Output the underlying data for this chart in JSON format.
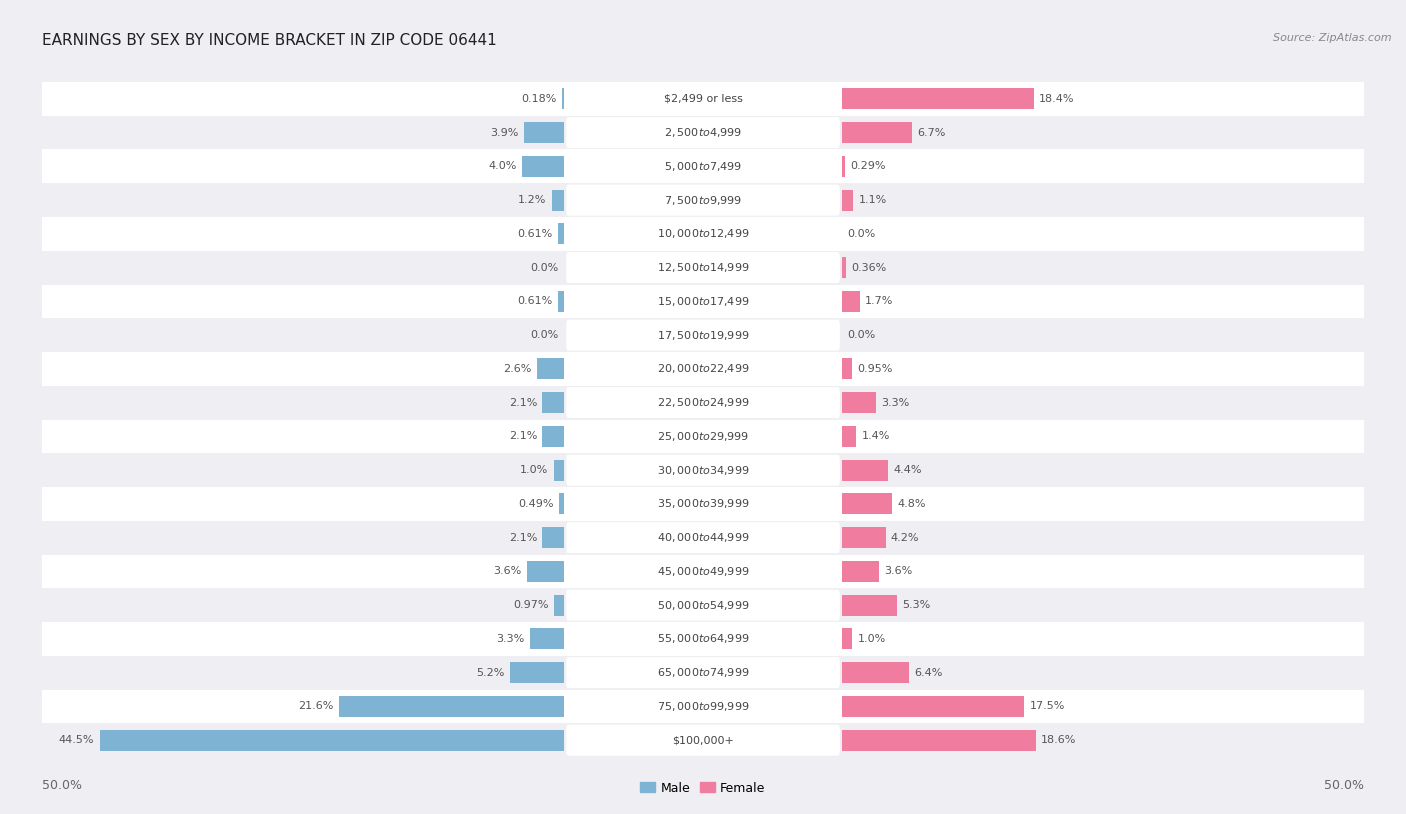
{
  "title": "EARNINGS BY SEX BY INCOME BRACKET IN ZIP CODE 06441",
  "source": "Source: ZipAtlas.com",
  "categories": [
    "$2,499 or less",
    "$2,500 to $4,999",
    "$5,000 to $7,499",
    "$7,500 to $9,999",
    "$10,000 to $12,499",
    "$12,500 to $14,999",
    "$15,000 to $17,499",
    "$17,500 to $19,999",
    "$20,000 to $22,499",
    "$22,500 to $24,999",
    "$25,000 to $29,999",
    "$30,000 to $34,999",
    "$35,000 to $39,999",
    "$40,000 to $44,999",
    "$45,000 to $49,999",
    "$50,000 to $54,999",
    "$55,000 to $64,999",
    "$65,000 to $74,999",
    "$75,000 to $99,999",
    "$100,000+"
  ],
  "male_values": [
    0.18,
    3.9,
    4.0,
    1.2,
    0.61,
    0.0,
    0.61,
    0.0,
    2.6,
    2.1,
    2.1,
    1.0,
    0.49,
    2.1,
    3.6,
    0.97,
    3.3,
    5.2,
    21.6,
    44.5
  ],
  "female_values": [
    18.4,
    6.7,
    0.29,
    1.1,
    0.0,
    0.36,
    1.7,
    0.0,
    0.95,
    3.3,
    1.4,
    4.4,
    4.8,
    4.2,
    3.6,
    5.3,
    1.0,
    6.4,
    17.5,
    18.6
  ],
  "male_color": "#7fb3d3",
  "female_color": "#f07ca0",
  "male_label": "Male",
  "female_label": "Female",
  "bg_color": "#eeeef3",
  "row_color_odd": "#e4e4eb",
  "row_color_even": "#ebebf0",
  "title_fontsize": 11,
  "source_fontsize": 8,
  "value_fontsize": 8,
  "category_fontsize": 8,
  "legend_fontsize": 9,
  "axis_tick_fontsize": 9,
  "max_value": 50.0
}
